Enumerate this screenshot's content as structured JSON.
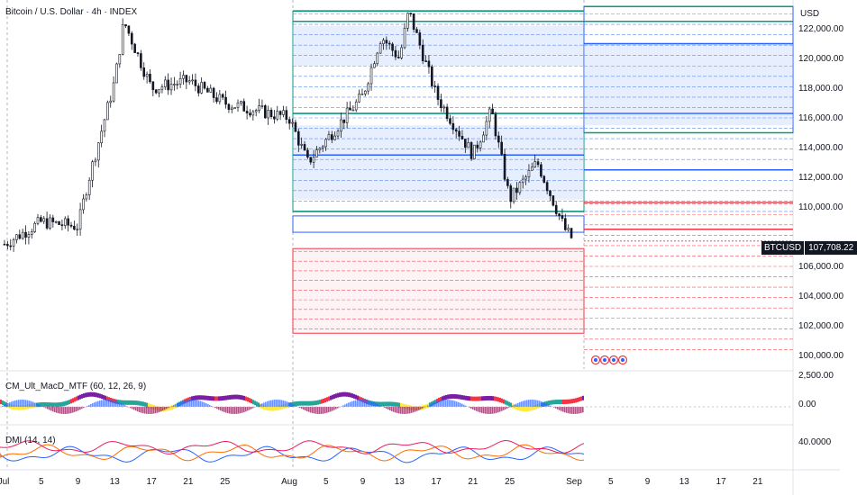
{
  "header": {
    "title": "Bitcoin / U.S. Dollar · 4h · INDEX",
    "currency": "USD"
  },
  "price_tag": {
    "symbol": "BTCUSD",
    "value": "107,708.22"
  },
  "panes": {
    "macd_label": "CM_Ult_MacD_MTF (60, 12, 26, 9)",
    "dmi_label": "DMI (14, 14)"
  },
  "price_axis": [
    "122,000.00",
    "120,000.00",
    "118,000.00",
    "116,000.00",
    "114,000.00",
    "112,000.00",
    "110,000.00",
    "106,000.00",
    "104,000.00",
    "102,000.00",
    "100,000.00"
  ],
  "macd_axis": [
    "2,500.00",
    "0.00"
  ],
  "dmi_axis": [
    "40.0000"
  ],
  "time_axis": [
    "Jul",
    "5",
    "9",
    "13",
    "17",
    "21",
    "25",
    "Aug",
    "5",
    "9",
    "13",
    "17",
    "21",
    "25",
    "Sep",
    "5",
    "9",
    "13",
    "17",
    "21"
  ],
  "colors": {
    "up": "#089981",
    "down": "#f23645",
    "blue": "#2962ff",
    "green": "#089981",
    "red": "#f23645",
    "candle": "#131722",
    "box_blue": "#bbd0ff",
    "box_red": "#ffcdd2"
  },
  "chart_data": {
    "type": "line",
    "title": "Bitcoin / U.S. Dollar · 4h · INDEX",
    "xlabel": "",
    "ylabel": "USD",
    "ylim": [
      99500,
      123800
    ],
    "x": [
      "Jul 1",
      "Jul 5",
      "Jul 9",
      "Jul 10",
      "Jul 13",
      "Jul 14",
      "Jul 17",
      "Jul 21",
      "Jul 25",
      "Aug 1",
      "Aug 3",
      "Aug 5",
      "Aug 9",
      "Aug 11",
      "Aug 13",
      "Aug 14",
      "Aug 17",
      "Aug 21",
      "Aug 23",
      "Aug 25",
      "Aug 28",
      "Aug 31",
      "Sep 1"
    ],
    "series": [
      {
        "values": [
          107500,
          109000,
          108700,
          111500,
          118500,
          122500,
          118000,
          118500,
          117000,
          116000,
          113000,
          114500,
          117500,
          121500,
          120000,
          123200,
          117500,
          113500,
          116500,
          110500,
          113000,
          108500,
          107708
        ]
      }
    ],
    "levels_green": [
      123200,
      122500,
      116300,
      109700
    ],
    "levels_blue": [
      113500,
      109500,
      108500
    ],
    "levels_red": [
      106000,
      101500
    ]
  }
}
